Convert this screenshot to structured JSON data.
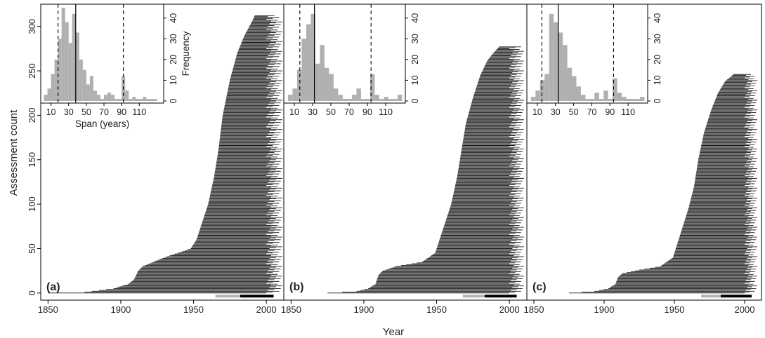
{
  "figure": {
    "ylabel": "Assessment count",
    "xlabel": "Year"
  },
  "chart_data": [
    {
      "type": "bar",
      "panel_label": "(a)",
      "xlim": [
        1845,
        2012
      ],
      "ylim": [
        -8,
        325
      ],
      "xticks": [
        1850,
        1900,
        1950,
        2000
      ],
      "yticks": [
        0,
        50,
        100,
        150,
        200,
        250,
        300
      ],
      "assessment_count": 312,
      "start_year_profile": [
        [
          0,
          1850
        ],
        [
          1,
          1875
        ],
        [
          5,
          1895
        ],
        [
          10,
          1905
        ],
        [
          15,
          1909
        ],
        [
          25,
          1912
        ],
        [
          30,
          1915
        ],
        [
          40,
          1930
        ],
        [
          50,
          1948
        ],
        [
          60,
          1952
        ],
        [
          80,
          1956
        ],
        [
          100,
          1960
        ],
        [
          130,
          1964
        ],
        [
          160,
          1967
        ],
        [
          200,
          1970
        ],
        [
          240,
          1975
        ],
        [
          270,
          1980
        ],
        [
          290,
          1985
        ],
        [
          305,
          1990
        ],
        [
          312,
          1992
        ]
      ],
      "end_year_range": [
        2000,
        2011
      ],
      "summary_bar_grey": [
        1965,
        1982
      ],
      "summary_bar_black": [
        1982,
        2005
      ],
      "inset": {
        "type": "histogram",
        "xlabel": "Span (years)",
        "ylabel": "Frequency",
        "xticks": [
          10,
          30,
          50,
          70,
          90,
          110
        ],
        "yticks": [
          0,
          10,
          20,
          30,
          40
        ],
        "xlim": [
          0,
          136
        ],
        "ylim": [
          0,
          46
        ],
        "bin_width": 4,
        "bin_starts": [
          2,
          6,
          10,
          14,
          18,
          22,
          26,
          30,
          34,
          38,
          42,
          46,
          50,
          54,
          58,
          62,
          66,
          70,
          74,
          78,
          82,
          86,
          90,
          94,
          98,
          102,
          106,
          110,
          114,
          118,
          122,
          126
        ],
        "counts": [
          3,
          6,
          13,
          20,
          30,
          45,
          38,
          28,
          42,
          33,
          20,
          15,
          8,
          12,
          5,
          3,
          1,
          3,
          4,
          3,
          1,
          1,
          12,
          5,
          1,
          2,
          1,
          1,
          2,
          1,
          1,
          1
        ],
        "vline_solid": 38,
        "vlines_dashed": [
          18,
          92
        ]
      }
    },
    {
      "type": "bar",
      "panel_label": "(b)",
      "xlim": [
        1845,
        2012
      ],
      "ylim": [
        -8,
        325
      ],
      "xticks": [
        1850,
        1900,
        1950,
        2000
      ],
      "assessment_count": 277,
      "start_year_profile": [
        [
          0,
          1875
        ],
        [
          2,
          1895
        ],
        [
          5,
          1903
        ],
        [
          10,
          1908
        ],
        [
          20,
          1910
        ],
        [
          25,
          1913
        ],
        [
          30,
          1922
        ],
        [
          35,
          1940
        ],
        [
          45,
          1949
        ],
        [
          60,
          1952
        ],
        [
          80,
          1956
        ],
        [
          100,
          1960
        ],
        [
          130,
          1964
        ],
        [
          160,
          1967
        ],
        [
          190,
          1970
        ],
        [
          220,
          1975
        ],
        [
          245,
          1980
        ],
        [
          262,
          1985
        ],
        [
          272,
          1990
        ],
        [
          277,
          1993
        ]
      ],
      "end_year_range": [
        2000,
        2010
      ],
      "summary_bar_grey": [
        1968,
        1983
      ],
      "summary_bar_black": [
        1983,
        2005
      ],
      "inset": {
        "type": "histogram",
        "xticks": [
          10,
          30,
          50,
          70,
          90,
          110
        ],
        "yticks": [
          0,
          10,
          20,
          30,
          40
        ],
        "xlim": [
          0,
          130
        ],
        "ylim": [
          0,
          46
        ],
        "bin_width": 5,
        "bin_starts": [
          3,
          8,
          13,
          18,
          23,
          28,
          33,
          38,
          43,
          48,
          53,
          58,
          63,
          68,
          73,
          78,
          83,
          88,
          93,
          98,
          103,
          108,
          113,
          118,
          123
        ],
        "counts": [
          3,
          6,
          15,
          30,
          37,
          42,
          18,
          27,
          16,
          13,
          6,
          3,
          1,
          1,
          3,
          6,
          1,
          1,
          13,
          3,
          1,
          2,
          1,
          1,
          3
        ],
        "vline_solid": 32,
        "vlines_dashed": [
          16,
          94
        ]
      }
    },
    {
      "type": "bar",
      "panel_label": "(c)",
      "xlim": [
        1845,
        2012
      ],
      "ylim": [
        -8,
        325
      ],
      "xticks": [
        1850,
        1900,
        1950,
        2000
      ],
      "assessment_count": 246,
      "start_year_profile": [
        [
          0,
          1875
        ],
        [
          2,
          1893
        ],
        [
          5,
          1903
        ],
        [
          10,
          1908
        ],
        [
          18,
          1910
        ],
        [
          22,
          1913
        ],
        [
          26,
          1925
        ],
        [
          30,
          1940
        ],
        [
          40,
          1949
        ],
        [
          55,
          1952
        ],
        [
          75,
          1956
        ],
        [
          95,
          1960
        ],
        [
          120,
          1964
        ],
        [
          150,
          1967
        ],
        [
          180,
          1971
        ],
        [
          205,
          1976
        ],
        [
          225,
          1981
        ],
        [
          238,
          1986
        ],
        [
          246,
          1992
        ]
      ],
      "end_year_range": [
        2000,
        2009
      ],
      "summary_bar_grey": [
        1969,
        1983
      ],
      "summary_bar_black": [
        1983,
        2005
      ],
      "inset": {
        "type": "histogram",
        "xticks": [
          10,
          30,
          50,
          70,
          90,
          110
        ],
        "yticks": [
          0,
          10,
          20,
          30,
          40
        ],
        "xlim": [
          0,
          130
        ],
        "ylim": [
          0,
          46
        ],
        "bin_width": 5,
        "bin_starts": [
          3,
          8,
          13,
          18,
          23,
          28,
          33,
          38,
          43,
          48,
          53,
          58,
          63,
          68,
          73,
          78,
          83,
          88,
          93,
          98,
          103,
          108,
          113,
          118,
          123
        ],
        "counts": [
          2,
          5,
          10,
          13,
          42,
          38,
          33,
          27,
          16,
          12,
          7,
          3,
          1,
          1,
          4,
          1,
          5,
          1,
          11,
          4,
          2,
          1,
          1,
          1,
          2
        ],
        "vline_solid": 33,
        "vlines_dashed": [
          15,
          94
        ]
      }
    }
  ]
}
